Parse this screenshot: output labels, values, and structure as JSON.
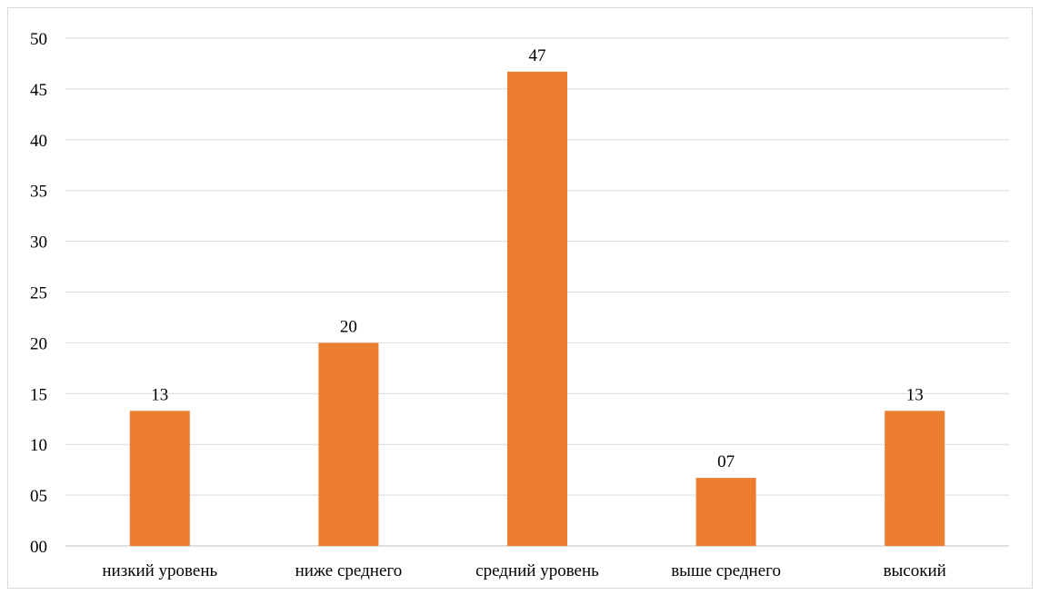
{
  "chart_data": {
    "type": "bar",
    "categories": [
      "низкий уровень",
      "ниже среднего",
      "средний уровень",
      "выше среднего",
      "высокий"
    ],
    "values": [
      13.3,
      20,
      46.7,
      6.7,
      13.3
    ],
    "data_labels": [
      "13",
      "20",
      "47",
      "07",
      "13"
    ],
    "ylim": [
      0,
      50
    ],
    "yticks": [
      0,
      5,
      10,
      15,
      20,
      25,
      30,
      35,
      40,
      45,
      50
    ],
    "ytick_labels": [
      "00",
      "05",
      "10",
      "15",
      "20",
      "25",
      "30",
      "35",
      "40",
      "45",
      "50"
    ],
    "title": "",
    "xlabel": "",
    "ylabel": "",
    "grid": true,
    "legend": "none",
    "colors": {
      "bar": "#ED7D31",
      "grid": "#d9d9d9",
      "axis": "#bfbfbf"
    }
  }
}
